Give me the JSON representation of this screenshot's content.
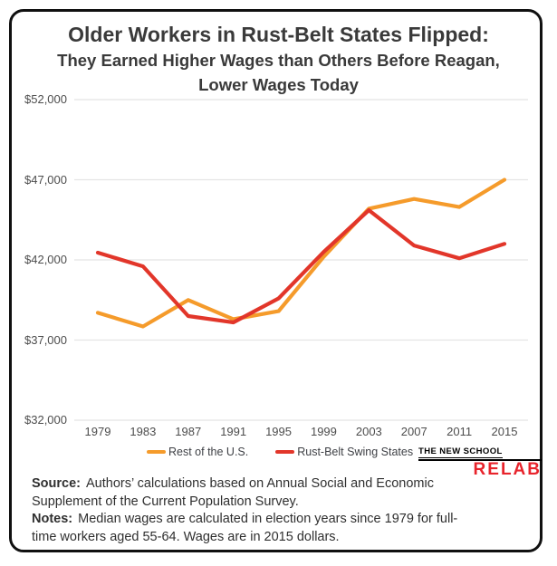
{
  "card": {
    "title_line1": "Older Workers in Rust-Belt States Flipped:",
    "title_line2": "They Earned Higher Wages than Others Before Reagan,",
    "title_line3": "Lower Wages Today"
  },
  "chart_data": {
    "type": "line",
    "title": "Older Workers in Rust-Belt States Flipped: They Earned Higher Wages than Others Before Reagan, Lower Wages Today",
    "categories": [
      "1979",
      "1983",
      "1987",
      "1991",
      "1995",
      "1999",
      "2003",
      "2007",
      "2011",
      "2015"
    ],
    "series": [
      {
        "name": "Rest of the U.S.",
        "color": "#f59b2b",
        "values": [
          38700,
          37850,
          39500,
          38300,
          38800,
          42200,
          45200,
          45800,
          45300,
          47000
        ]
      },
      {
        "name": "Rust-Belt Swing States",
        "color": "#e2362a",
        "values": [
          42450,
          41600,
          38500,
          38100,
          39600,
          42500,
          45100,
          42900,
          42100,
          43000
        ]
      }
    ],
    "ylim": [
      32000,
      52000
    ],
    "y_ticks": [
      {
        "label": "$52,000",
        "value": 52000
      },
      {
        "label": "$47,000",
        "value": 47000
      },
      {
        "label": "$42,000",
        "value": 42000
      },
      {
        "label": "$37,000",
        "value": 37000
      },
      {
        "label": "$32,000",
        "value": 32000
      }
    ],
    "xlabel": "",
    "ylabel": "",
    "grid": "horizontal",
    "legend_position": "bottom"
  },
  "branding": {
    "institution": "THE NEW SCHOOL",
    "lab": "RELAB"
  },
  "footer": {
    "source_label": "Source:",
    "source_text": "Authors’ calculations based on Annual Social and Economic Supplement of the Current Population Survey.",
    "notes_label": "Notes:",
    "notes_text": "Median wages are calculated in election years since 1979 for full-time workers aged 55-64. Wages are in 2015 dollars."
  }
}
